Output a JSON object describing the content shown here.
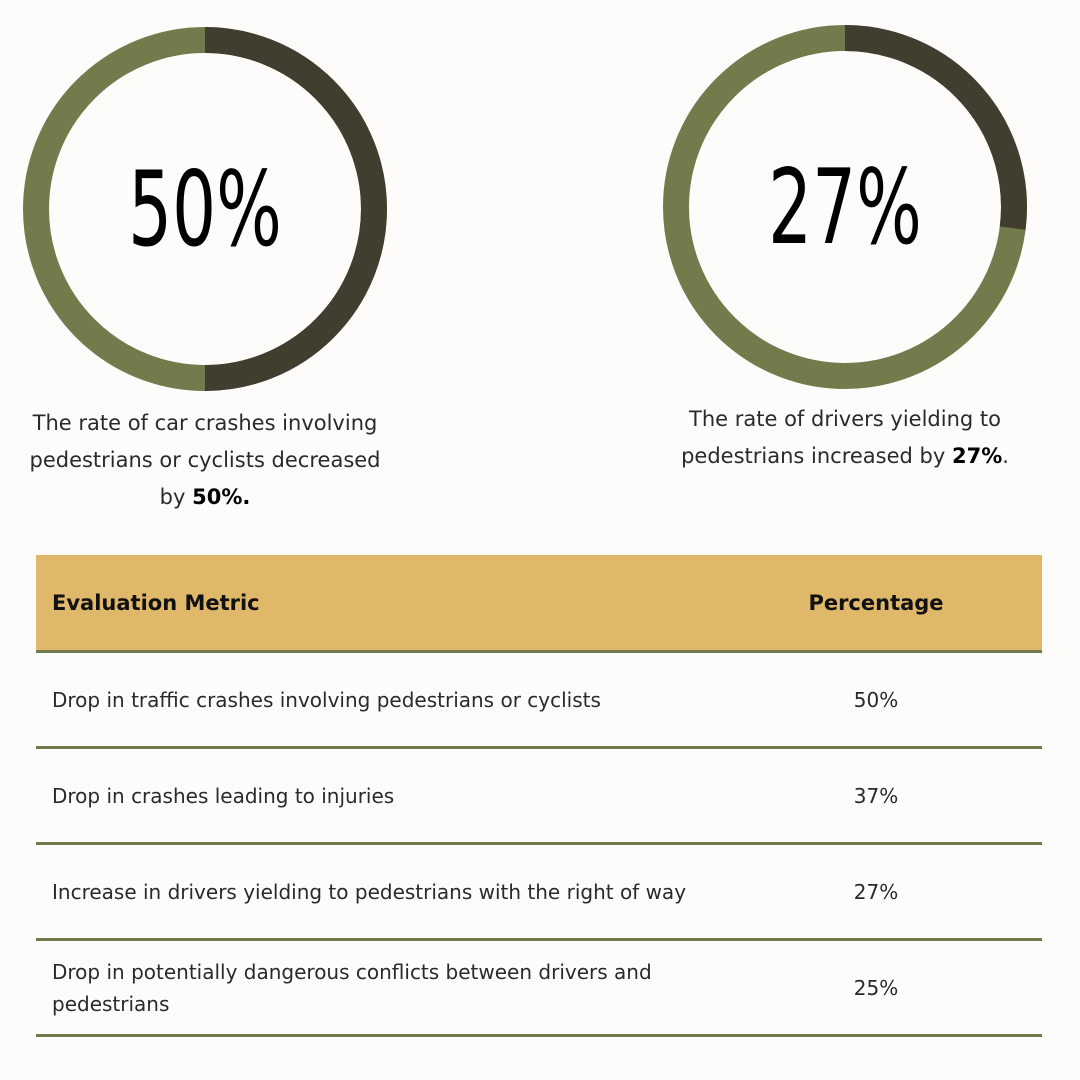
{
  "chart_data": [
    {
      "type": "donut",
      "values": [
        50
      ],
      "value_labels": [
        "50%"
      ],
      "ylim": [
        0,
        100
      ],
      "color": "#413e2f",
      "track_color": "#737b4d",
      "caption": {
        "text": "The rate of car crashes involving pedestrians or cyclists decreased by ",
        "emphasis": "50%."
      }
    },
    {
      "type": "donut",
      "values": [
        27
      ],
      "value_labels": [
        "27%"
      ],
      "ylim": [
        0,
        100
      ],
      "color": "#413e2f",
      "track_color": "#737b4d",
      "caption": {
        "text": "The rate of drivers yielding to pedestrians increased by ",
        "emphasis": "27%",
        "after": "."
      }
    }
  ],
  "table": {
    "header": [
      "Evaluation Metric",
      "Percentage"
    ],
    "rows": [
      [
        "Drop in traffic crashes involving pedestrians or cyclists",
        "50%"
      ],
      [
        "Drop in crashes leading to injuries",
        "37%"
      ],
      [
        "Increase in drivers yielding to pedestrians with the right of way",
        "27%"
      ],
      [
        "Drop in potentially dangerous conflicts between drivers and pedestrians",
        "25%"
      ]
    ]
  }
}
